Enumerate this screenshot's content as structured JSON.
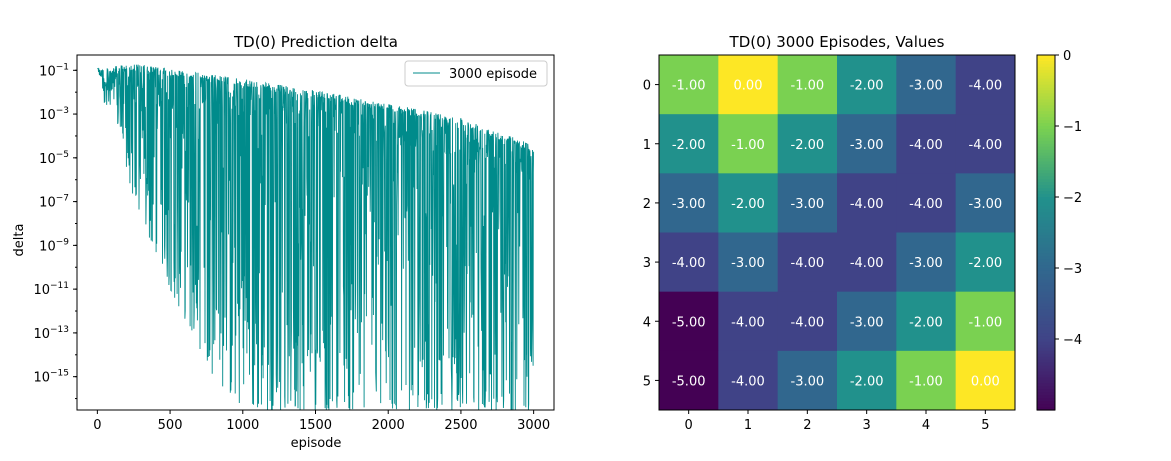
{
  "chart_data": [
    {
      "type": "line",
      "title": "TD(0) Prediction delta",
      "xlabel": "episode",
      "ylabel": "delta",
      "yscale": "log",
      "xlim": [
        -140,
        3140
      ],
      "ylim": [
        3e-17,
        0.5
      ],
      "xticks": [
        0,
        500,
        1000,
        1500,
        2000,
        2500,
        3000
      ],
      "yticks": [
        {
          "value": 0.1,
          "base": "10",
          "exp": "−1"
        },
        {
          "value": 0.001,
          "base": "10",
          "exp": "−3"
        },
        {
          "value": 1e-05,
          "base": "10",
          "exp": "−5"
        },
        {
          "value": 1e-07,
          "base": "10",
          "exp": "−7"
        },
        {
          "value": 1e-09,
          "base": "10",
          "exp": "−9"
        },
        {
          "value": 1e-11,
          "base": "10",
          "exp": "−11"
        },
        {
          "value": 1e-13,
          "base": "10",
          "exp": "−13"
        },
        {
          "value": 1e-15,
          "base": "10",
          "exp": "−15"
        }
      ],
      "series": [
        {
          "name": "3000 episode",
          "color": "#008b8b",
          "episodes": 3000,
          "upper_envelope": [
            [
              0,
              0.12
            ],
            [
              250,
              0.2
            ],
            [
              500,
              0.12
            ],
            [
              1000,
              0.04
            ],
            [
              1500,
              0.012
            ],
            [
              2000,
              0.003
            ],
            [
              2500,
              0.0007
            ],
            [
              3000,
              4e-05
            ]
          ],
          "lower_envelope": [
            [
              0,
              0.1
            ],
            [
              100,
              0.005
            ],
            [
              250,
              1e-07
            ],
            [
              500,
              1e-11
            ],
            [
              800,
              1e-15
            ],
            [
              1000,
              3e-17
            ],
            [
              3000,
              3e-17
            ]
          ]
        }
      ],
      "legend": "top-right",
      "grid": false
    },
    {
      "type": "heatmap",
      "title": "TD(0) 3000 Episodes, Values",
      "colormap": "viridis",
      "vmin": -5,
      "vmax": 0,
      "xticks": [
        "0",
        "1",
        "2",
        "3",
        "4",
        "5"
      ],
      "yticks": [
        "0",
        "1",
        "2",
        "3",
        "4",
        "5"
      ],
      "values": [
        [
          -1,
          0,
          -1,
          -2,
          -3,
          -4
        ],
        [
          -2,
          -1,
          -2,
          -3,
          -4,
          -4
        ],
        [
          -3,
          -2,
          -3,
          -4,
          -4,
          -3
        ],
        [
          -4,
          -3,
          -4,
          -4,
          -3,
          -2
        ],
        [
          -5,
          -4,
          -4,
          -3,
          -2,
          -1
        ],
        [
          -5,
          -4,
          -3,
          -2,
          -1,
          0
        ]
      ],
      "cell_labels": [
        [
          "-1.00",
          "0.00",
          "-1.00",
          "-2.00",
          "-3.00",
          "-4.00"
        ],
        [
          "-2.00",
          "-1.00",
          "-2.00",
          "-3.00",
          "-4.00",
          "-4.00"
        ],
        [
          "-3.00",
          "-2.00",
          "-3.00",
          "-4.00",
          "-4.00",
          "-3.00"
        ],
        [
          "-4.00",
          "-3.00",
          "-4.00",
          "-4.00",
          "-3.00",
          "-2.00"
        ],
        [
          "-5.00",
          "-4.00",
          "-4.00",
          "-3.00",
          "-2.00",
          "-1.00"
        ],
        [
          "-5.00",
          "-4.00",
          "-3.00",
          "-2.00",
          "-1.00",
          "0.00"
        ]
      ],
      "colorbar": {
        "ticks": [
          0,
          -1,
          -2,
          -3,
          -4
        ],
        "labels": [
          "0",
          "−1",
          "−2",
          "−3",
          "−4"
        ]
      }
    }
  ]
}
